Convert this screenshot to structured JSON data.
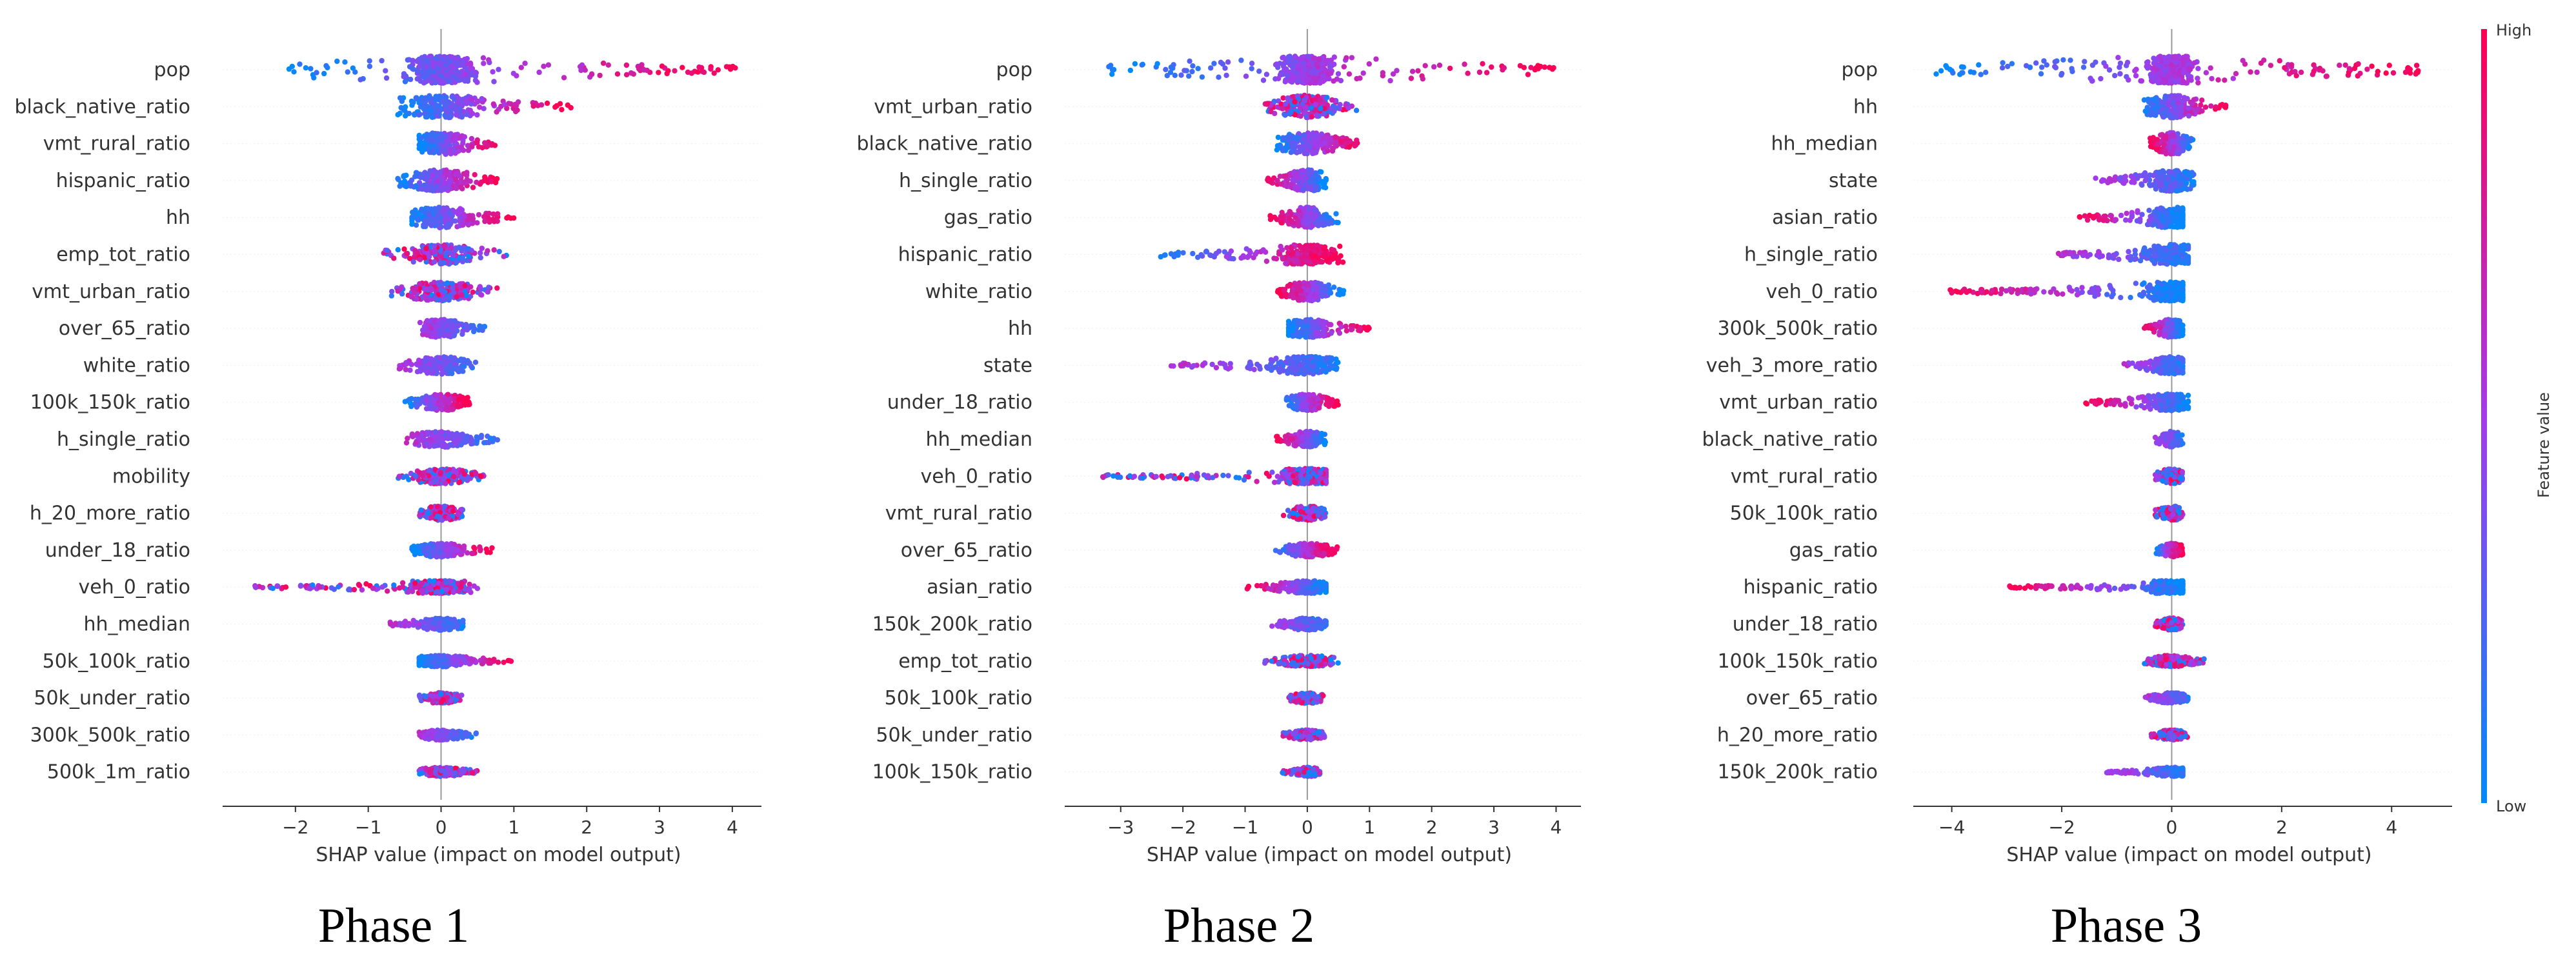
{
  "colors": {
    "low": "#008afb",
    "mid": "#a43aeb",
    "high": "#ff0052"
  },
  "colorbar": {
    "label": "Feature value",
    "high_label": "High",
    "low_label": "Low"
  },
  "chart_data": [
    {
      "type": "scatter",
      "subtype": "shap-beeswarm",
      "title": "Phase 1",
      "xlabel": "SHAP value (impact on model output)",
      "xlim": [
        -3.0,
        4.4
      ],
      "xticks": [
        -2,
        -1,
        0,
        1,
        2,
        3,
        4
      ],
      "features": [
        {
          "name": "pop",
          "min": -2.1,
          "max": 4.1,
          "pos": "high"
        },
        {
          "name": "black_native_ratio",
          "min": -0.6,
          "max": 1.8,
          "pos": "high"
        },
        {
          "name": "vmt_rural_ratio",
          "min": -0.3,
          "max": 0.8,
          "pos": "high"
        },
        {
          "name": "hispanic_ratio",
          "min": -0.6,
          "max": 0.8,
          "pos": "high"
        },
        {
          "name": "hh",
          "min": -0.4,
          "max": 1.0,
          "pos": "high"
        },
        {
          "name": "emp_tot_ratio",
          "min": -0.8,
          "max": 0.9,
          "pos": "mixed"
        },
        {
          "name": "vmt_urban_ratio",
          "min": -0.7,
          "max": 0.8,
          "pos": "mixed"
        },
        {
          "name": "over_65_ratio",
          "min": -0.3,
          "max": 0.6,
          "pos": "low"
        },
        {
          "name": "white_ratio",
          "min": -0.6,
          "max": 0.5,
          "pos": "low"
        },
        {
          "name": "100k_150k_ratio",
          "min": -0.5,
          "max": 0.4,
          "pos": "high"
        },
        {
          "name": "h_single_ratio",
          "min": -0.5,
          "max": 0.8,
          "pos": "low"
        },
        {
          "name": "mobility",
          "min": -0.6,
          "max": 0.6,
          "pos": "mixed"
        },
        {
          "name": "h_20_more_ratio",
          "min": -0.3,
          "max": 0.3,
          "pos": "mixed"
        },
        {
          "name": "under_18_ratio",
          "min": -0.4,
          "max": 0.7,
          "pos": "high"
        },
        {
          "name": "veh_0_ratio",
          "min": -2.6,
          "max": 0.5,
          "pos": "mixed"
        },
        {
          "name": "hh_median",
          "min": -0.7,
          "max": 0.3,
          "pos": "low"
        },
        {
          "name": "50k_100k_ratio",
          "min": -0.3,
          "max": 1.0,
          "pos": "high"
        },
        {
          "name": "50k_under_ratio",
          "min": -0.3,
          "max": 0.3,
          "pos": "mixed"
        },
        {
          "name": "300k_500k_ratio",
          "min": -0.3,
          "max": 0.5,
          "pos": "low"
        },
        {
          "name": "500k_1m_ratio",
          "min": -0.3,
          "max": 0.5,
          "pos": "mixed"
        }
      ]
    },
    {
      "type": "scatter",
      "subtype": "shap-beeswarm",
      "title": "Phase 2",
      "xlabel": "SHAP value (impact on model output)",
      "xlim": [
        -3.9,
        4.4
      ],
      "xticks": [
        -3,
        -2,
        -1,
        0,
        1,
        2,
        3,
        4
      ],
      "features": [
        {
          "name": "pop",
          "min": -3.3,
          "max": 4.0,
          "pos": "high"
        },
        {
          "name": "vmt_urban_ratio",
          "min": -0.7,
          "max": 0.8,
          "pos": "mixed"
        },
        {
          "name": "black_native_ratio",
          "min": -0.5,
          "max": 0.9,
          "pos": "high"
        },
        {
          "name": "h_single_ratio",
          "min": -0.7,
          "max": 0.3,
          "pos": "neg_high"
        },
        {
          "name": "gas_ratio",
          "min": -0.6,
          "max": 0.5,
          "pos": "neg_high"
        },
        {
          "name": "hispanic_ratio",
          "min": -2.4,
          "max": 0.6,
          "pos": "high"
        },
        {
          "name": "white_ratio",
          "min": -0.5,
          "max": 0.6,
          "pos": "neg_high"
        },
        {
          "name": "hh",
          "min": -0.3,
          "max": 1.0,
          "pos": "high"
        },
        {
          "name": "state",
          "min": -2.2,
          "max": 0.5,
          "pos": "low"
        },
        {
          "name": "under_18_ratio",
          "min": -0.4,
          "max": 0.5,
          "pos": "high"
        },
        {
          "name": "hh_median",
          "min": -0.5,
          "max": 0.3,
          "pos": "neg_high"
        },
        {
          "name": "veh_0_ratio",
          "min": -3.5,
          "max": 0.3,
          "pos": "mixed"
        },
        {
          "name": "vmt_rural_ratio",
          "min": -0.4,
          "max": 0.3,
          "pos": "mixed"
        },
        {
          "name": "over_65_ratio",
          "min": -0.6,
          "max": 0.5,
          "pos": "high"
        },
        {
          "name": "asian_ratio",
          "min": -1.0,
          "max": 0.3,
          "pos": "neg_high"
        },
        {
          "name": "150k_200k_ratio",
          "min": -0.6,
          "max": 0.3,
          "pos": "low"
        },
        {
          "name": "emp_tot_ratio",
          "min": -0.7,
          "max": 0.5,
          "pos": "mixed"
        },
        {
          "name": "50k_100k_ratio",
          "min": -0.3,
          "max": 0.3,
          "pos": "mixed"
        },
        {
          "name": "50k_under_ratio",
          "min": -0.4,
          "max": 0.3,
          "pos": "mixed"
        },
        {
          "name": "100k_150k_ratio",
          "min": -0.4,
          "max": 0.2,
          "pos": "mixed"
        }
      ]
    },
    {
      "type": "scatter",
      "subtype": "shap-beeswarm",
      "title": "Phase 3",
      "xlabel": "SHAP value (impact on model output)",
      "xlim": [
        -4.7,
        5.1
      ],
      "xticks": [
        -4,
        -2,
        0,
        2,
        4
      ],
      "features": [
        {
          "name": "pop",
          "min": -4.3,
          "max": 4.5,
          "pos": "high"
        },
        {
          "name": "hh",
          "min": -0.5,
          "max": 1.0,
          "pos": "high"
        },
        {
          "name": "hh_median",
          "min": -0.4,
          "max": 0.4,
          "pos": "neg_high"
        },
        {
          "name": "state",
          "min": -1.4,
          "max": 0.4,
          "pos": "low"
        },
        {
          "name": "asian_ratio",
          "min": -1.8,
          "max": 0.2,
          "pos": "neg_high"
        },
        {
          "name": "h_single_ratio",
          "min": -2.1,
          "max": 0.3,
          "pos": "low"
        },
        {
          "name": "veh_0_ratio",
          "min": -4.2,
          "max": 0.2,
          "pos": "neg_high"
        },
        {
          "name": "300k_500k_ratio",
          "min": -0.5,
          "max": 0.2,
          "pos": "neg_high"
        },
        {
          "name": "veh_3_more_ratio",
          "min": -0.9,
          "max": 0.2,
          "pos": "low"
        },
        {
          "name": "vmt_urban_ratio",
          "min": -1.6,
          "max": 0.3,
          "pos": "neg_high"
        },
        {
          "name": "black_native_ratio",
          "min": -0.3,
          "max": 0.2,
          "pos": "low"
        },
        {
          "name": "vmt_rural_ratio",
          "min": -0.3,
          "max": 0.2,
          "pos": "mixed"
        },
        {
          "name": "50k_100k_ratio",
          "min": -0.3,
          "max": 0.2,
          "pos": "mixed"
        },
        {
          "name": "gas_ratio",
          "min": -0.3,
          "max": 0.2,
          "pos": "high"
        },
        {
          "name": "hispanic_ratio",
          "min": -3.0,
          "max": 0.2,
          "pos": "neg_high"
        },
        {
          "name": "under_18_ratio",
          "min": -0.3,
          "max": 0.2,
          "pos": "mixed"
        },
        {
          "name": "100k_150k_ratio",
          "min": -0.5,
          "max": 0.6,
          "pos": "mixed"
        },
        {
          "name": "over_65_ratio",
          "min": -0.5,
          "max": 0.3,
          "pos": "low"
        },
        {
          "name": "h_20_more_ratio",
          "min": -0.4,
          "max": 0.3,
          "pos": "mixed"
        },
        {
          "name": "150k_200k_ratio",
          "min": -1.2,
          "max": 0.2,
          "pos": "low"
        }
      ]
    }
  ]
}
